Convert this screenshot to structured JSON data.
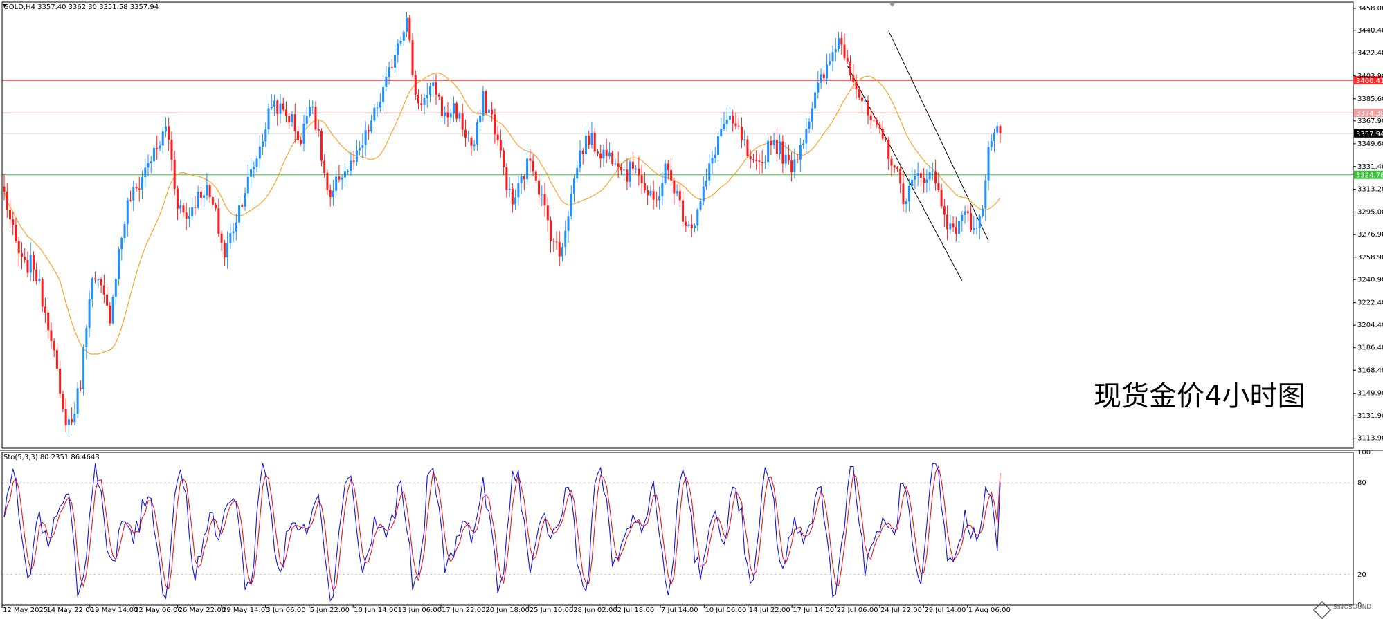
{
  "header": {
    "symbol_line": "GOLD,H4  3357.40 3362.30 3351.58 3357.94",
    "stoch_line": "Sto(5,3,3) 80.2351 86.4643"
  },
  "watermark": "现货金价4小时图",
  "logo_text": "SINOSOUND",
  "colors": {
    "bull": "#1e90ff",
    "bear": "#ff1a1a",
    "ma": "#f4a52a",
    "stoch_main": "#1414d2",
    "stoch_signal": "#e0181f",
    "resistance": "#ff2a2a",
    "support": "#3bbf3b",
    "faint_level": "#f4a0a0",
    "current": "#bdbdbd"
  },
  "chart_data": [
    {
      "type": "candlestick",
      "symbol": "GOLD",
      "timeframe": "H4",
      "ylim": [
        3106,
        3463
      ],
      "y_ticks": [
        "3458.00",
        "3440.40",
        "3422.40",
        "3403.90",
        "3385.60",
        "3367.90",
        "3349.60",
        "3331.40",
        "3313.20",
        "3295.00",
        "3276.90",
        "3258.90",
        "3240.90",
        "3222.40",
        "3204.40",
        "3186.40",
        "3168.40",
        "3149.90",
        "3131.90",
        "3113.90"
      ],
      "x_ticks": [
        "12 May 2025",
        "14 May 22:00",
        "19 May 14:00",
        "22 May 06:00",
        "26 May 22:00",
        "29 May 14:00",
        "3 Jun 06:00",
        "5 Jun 22:00",
        "10 Jun 14:00",
        "13 Jun 06:00",
        "17 Jun 22:00",
        "20 Jun 18:00",
        "25 Jun 10:00",
        "28 Jun 02:00",
        "2 Jul 18:00",
        "7 Jul 14:00",
        "10 Jul 06:00",
        "14 Jul 22:00",
        "17 Jul 14:00",
        "22 Jul 06:00",
        "24 Jul 22:00",
        "29 Jul 14:00",
        "1 Aug 06:00"
      ],
      "levels": [
        {
          "name": "resistance",
          "value": 3400.41,
          "label": "3400.41"
        },
        {
          "name": "faint",
          "value": 3374.38,
          "label": "3374.38"
        },
        {
          "name": "current",
          "value": 3357.94,
          "label": "3357.94"
        },
        {
          "name": "support",
          "value": 3324.78,
          "label": "3324.78"
        }
      ],
      "anchor_closes": [
        3310,
        3275,
        3250,
        3255,
        3225,
        3195,
        3135,
        3125,
        3160,
        3240,
        3235,
        3210,
        3265,
        3305,
        3315,
        3335,
        3345,
        3365,
        3305,
        3290,
        3305,
        3315,
        3295,
        3260,
        3285,
        3310,
        3330,
        3355,
        3385,
        3375,
        3370,
        3350,
        3390,
        3345,
        3300,
        3325,
        3330,
        3340,
        3360,
        3380,
        3400,
        3430,
        3450,
        3385,
        3385,
        3395,
        3370,
        3380,
        3360,
        3345,
        3385,
        3370,
        3335,
        3300,
        3320,
        3340,
        3310,
        3280,
        3260,
        3300,
        3340,
        3355,
        3345,
        3340,
        3340,
        3325,
        3335,
        3310,
        3300,
        3330,
        3315,
        3290,
        3285,
        3310,
        3340,
        3365,
        3365,
        3355,
        3330,
        3330,
        3355,
        3345,
        3330,
        3345,
        3370,
        3395,
        3410,
        3435,
        3420,
        3395,
        3375,
        3360,
        3350,
        3330,
        3305,
        3320,
        3325,
        3325,
        3300,
        3275,
        3295,
        3285,
        3290,
        3355,
        3357.94
      ],
      "ma_period": 20
    },
    {
      "type": "line",
      "name": "Sto(5,3,3)",
      "ylim": [
        0,
        100
      ],
      "y_ticks": [
        "100",
        "80",
        "20",
        "0"
      ],
      "levels": [
        80,
        20
      ],
      "current_main": 80.2351,
      "current_signal": 86.4643
    }
  ]
}
